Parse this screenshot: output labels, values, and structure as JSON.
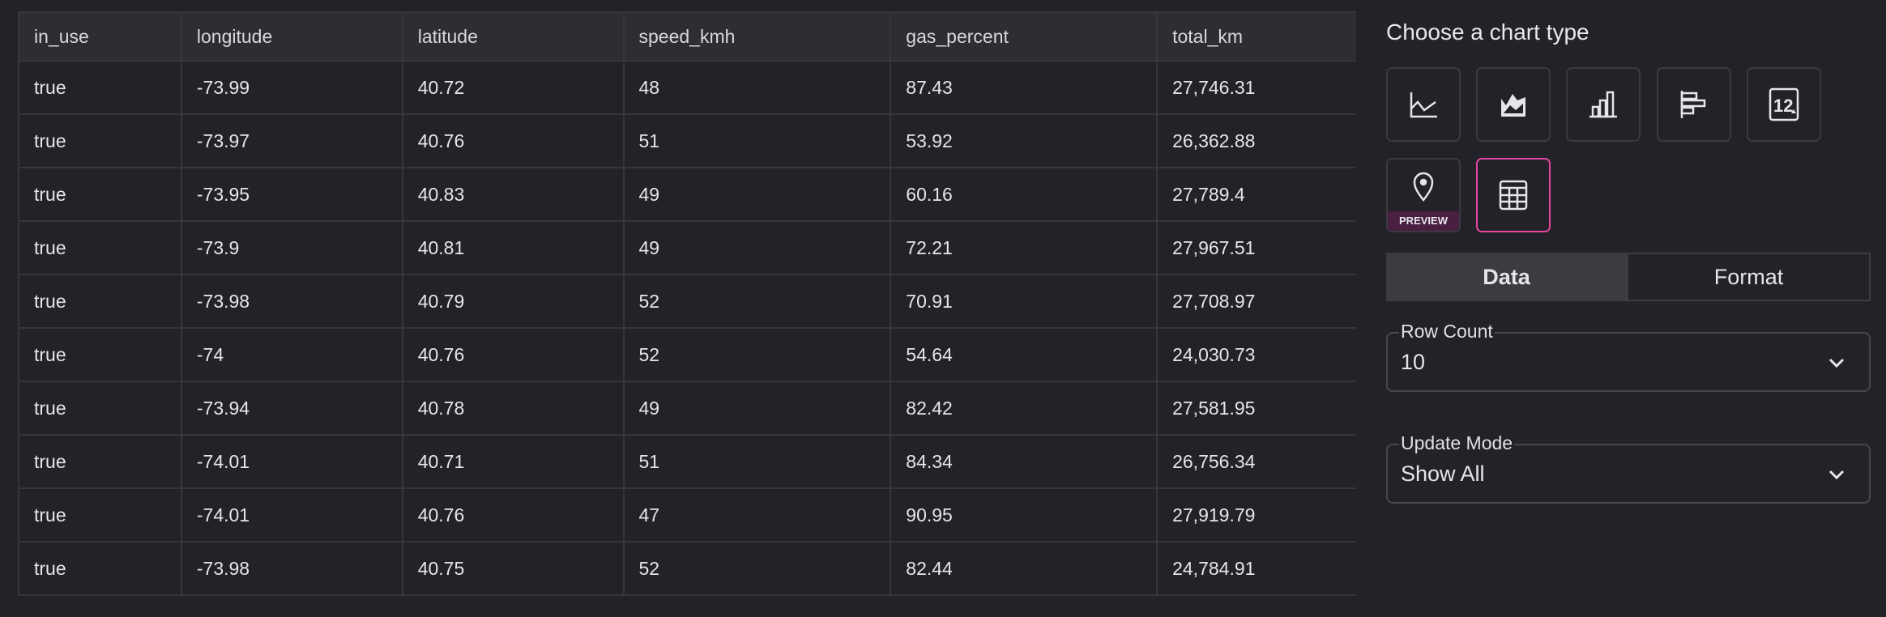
{
  "table": {
    "columns": [
      "in_use",
      "longitude",
      "latitude",
      "speed_kmh",
      "gas_percent",
      "total_km"
    ],
    "rows": [
      [
        "true",
        "-73.99",
        "40.72",
        "48",
        "87.43",
        "27,746.31"
      ],
      [
        "true",
        "-73.97",
        "40.76",
        "51",
        "53.92",
        "26,362.88"
      ],
      [
        "true",
        "-73.95",
        "40.83",
        "49",
        "60.16",
        "27,789.4"
      ],
      [
        "true",
        "-73.9",
        "40.81",
        "49",
        "72.21",
        "27,967.51"
      ],
      [
        "true",
        "-73.98",
        "40.79",
        "52",
        "70.91",
        "27,708.97"
      ],
      [
        "true",
        "-74",
        "40.76",
        "52",
        "54.64",
        "24,030.73"
      ],
      [
        "true",
        "-73.94",
        "40.78",
        "49",
        "82.42",
        "27,581.95"
      ],
      [
        "true",
        "-74.01",
        "40.71",
        "51",
        "84.34",
        "26,756.34"
      ],
      [
        "true",
        "-74.01",
        "40.76",
        "47",
        "90.95",
        "27,919.79"
      ],
      [
        "true",
        "-73.98",
        "40.75",
        "52",
        "82.44",
        "24,784.91"
      ]
    ]
  },
  "panel": {
    "title": "Choose a chart type",
    "chart_types": [
      {
        "icon": "line-chart-icon"
      },
      {
        "icon": "area-chart-icon"
      },
      {
        "icon": "bar-chart-icon"
      },
      {
        "icon": "horizontal-bar-chart-icon"
      },
      {
        "icon": "number-icon"
      },
      {
        "icon": "map-pin-icon",
        "badge": "PREVIEW"
      },
      {
        "icon": "table-icon",
        "selected": true
      }
    ],
    "tabs": {
      "data": "Data",
      "format": "Format"
    },
    "row_count": {
      "label": "Row Count",
      "value": "10"
    },
    "update_mode": {
      "label": "Update Mode",
      "value": "Show All"
    }
  },
  "colors": {
    "accent": "#e0479e",
    "background": "#232228",
    "preview_badge": "#4a1f42"
  }
}
